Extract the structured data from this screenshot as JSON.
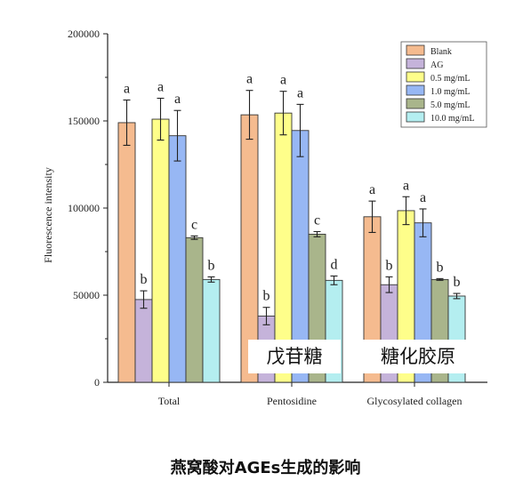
{
  "chart_data": {
    "type": "bar",
    "ylabel": "Fluorescence intensity",
    "ylim": [
      0,
      200000
    ],
    "yticks": [
      0,
      50000,
      100000,
      150000,
      200000
    ],
    "categories": [
      "Total",
      "Pentosidine",
      "Glycosylated collagen"
    ],
    "legend_position": "top-right",
    "series": [
      {
        "name": "Blank",
        "color": "#F5BB8F",
        "values": [
          149000,
          153500,
          95000
        ],
        "errors": [
          13000,
          14000,
          9000
        ],
        "letters": [
          "a",
          "a",
          "a"
        ]
      },
      {
        "name": "AG",
        "color": "#C5B3DA",
        "values": [
          47500,
          38000,
          56000
        ],
        "errors": [
          5000,
          5000,
          4500
        ],
        "letters": [
          "b",
          "b",
          "b"
        ]
      },
      {
        "name": "0.5 mg/mL",
        "color": "#FEFE8A",
        "values": [
          151000,
          154500,
          98500
        ],
        "errors": [
          12000,
          12500,
          8000
        ],
        "letters": [
          "a",
          "a",
          "a"
        ]
      },
      {
        "name": "1.0  mg/mL",
        "color": "#97B7F4",
        "values": [
          141500,
          144500,
          91500
        ],
        "errors": [
          14500,
          15000,
          8000
        ],
        "letters": [
          "a",
          "a",
          "a"
        ]
      },
      {
        "name": "5.0 mg/mL",
        "color": "#A9B58B",
        "values": [
          83000,
          85000,
          59000
        ],
        "errors": [
          1000,
          1500,
          500
        ],
        "letters": [
          "c",
          "c",
          "b"
        ]
      },
      {
        "name": "10.0 mg/mL",
        "color": "#B4EEF0",
        "values": [
          59000,
          58500,
          49500
        ],
        "errors": [
          1500,
          2500,
          1500
        ],
        "letters": [
          "b",
          "d",
          "b"
        ]
      }
    ]
  },
  "overlay_labels": [
    "戊苷糖",
    "糖化胶原"
  ],
  "caption": "燕窝酸对AGEs生成的影响"
}
